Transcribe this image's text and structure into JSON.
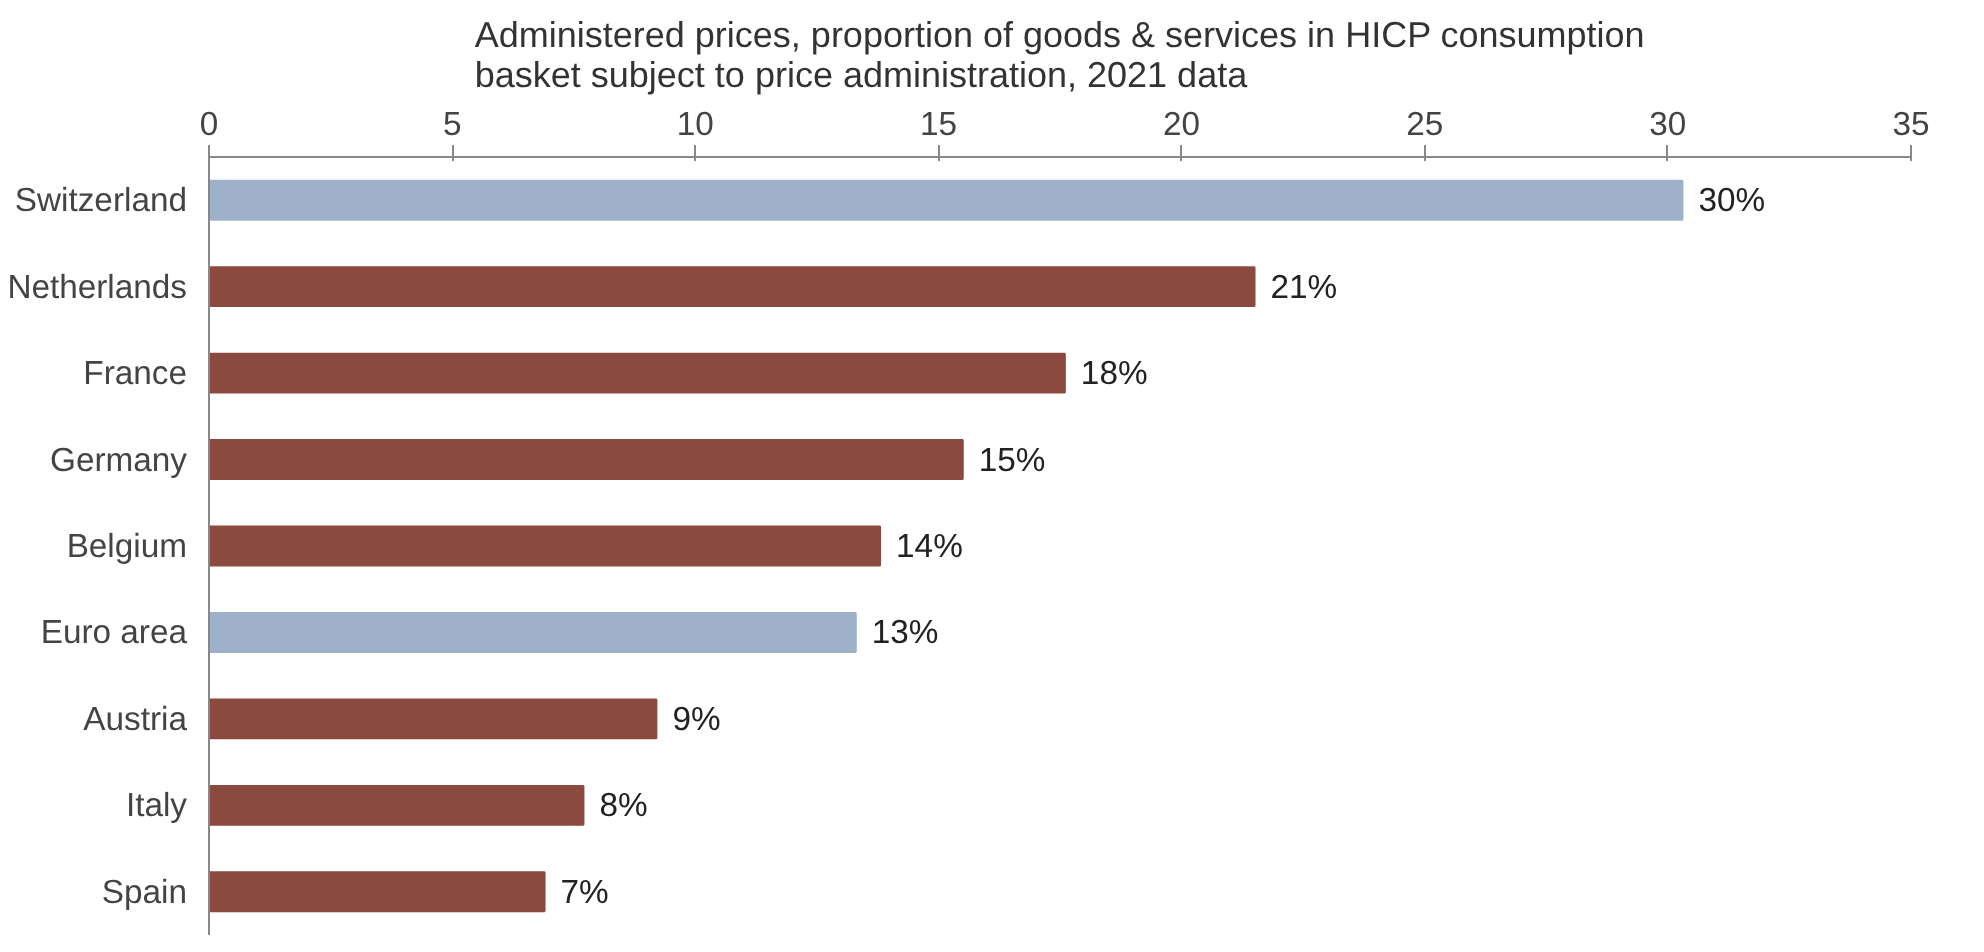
{
  "chart_data": {
    "type": "bar",
    "orientation": "horizontal",
    "title": "Administered prices, proportion of goods & services in HICP consumption\nbasket subject to price administration, 2021 data",
    "categories": [
      "Switzerland",
      "Netherlands",
      "France",
      "Germany",
      "Belgium",
      "Euro area",
      "Austria",
      "Italy",
      "Spain"
    ],
    "values": [
      30.3,
      21.5,
      17.6,
      15.5,
      13.8,
      13.3,
      9.2,
      7.7,
      6.9
    ],
    "colors": [
      "#9fb1c9",
      "#8b4a3f",
      "#8b4a3f",
      "#8b4a3f",
      "#8b4a3f",
      "#9fb1c9",
      "#8b4a3f",
      "#8b4a3f",
      "#8b4a3f"
    ],
    "value_labels": [
      "30%",
      "21%",
      "18%",
      "15%",
      "14%",
      "13%",
      "9%",
      "8%",
      "7%"
    ],
    "xlim": [
      0,
      35
    ],
    "xticks": [
      0,
      5,
      10,
      15,
      20,
      25,
      30,
      35
    ],
    "grid": false
  }
}
